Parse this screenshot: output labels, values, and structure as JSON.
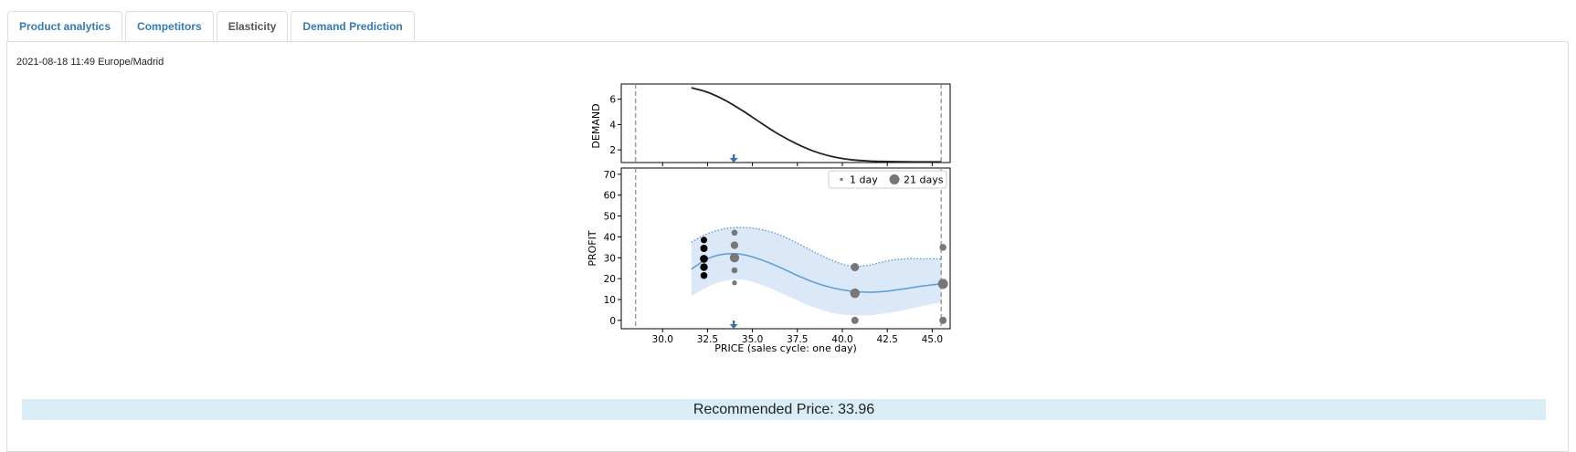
{
  "tabs": [
    {
      "label": "Product analytics",
      "active": false
    },
    {
      "label": "Competitors",
      "active": false
    },
    {
      "label": "Elasticity",
      "active": true
    },
    {
      "label": "Demand Prediction",
      "active": false
    }
  ],
  "timestamp": "2021-08-18 11:49 Europe/Madrid",
  "recommendation": "Recommended Price: 33.96",
  "chart_data": [
    {
      "type": "line",
      "ylabel": "DEMAND",
      "xlim": [
        27.7,
        46.0
      ],
      "ylim": [
        1.0,
        7.2
      ],
      "yticks": [
        2,
        4,
        6
      ],
      "curve": {
        "x": [
          31.6,
          32.5,
          33.5,
          34.5,
          35.5,
          36.5,
          37.5,
          38.5,
          39.5,
          40.5,
          41.5,
          42.5,
          43.5,
          44.5,
          45.5
        ],
        "y": [
          6.9,
          6.55,
          5.9,
          5.05,
          4.1,
          3.2,
          2.45,
          1.85,
          1.45,
          1.22,
          1.12,
          1.08,
          1.06,
          1.05,
          1.05
        ]
      },
      "vlines": [
        28.5,
        45.5
      ],
      "marker_x": 33.96,
      "colors": {
        "curve": "#222222",
        "vline": "#888888",
        "marker": "#3d6fb0"
      }
    },
    {
      "type": "scatter",
      "ylabel": "PROFIT",
      "xlabel": "PRICE (sales cycle: one day)",
      "xlim": [
        27.7,
        46.0
      ],
      "ylim": [
        -4,
        73
      ],
      "xticks": [
        30.0,
        32.5,
        35.0,
        37.5,
        40.0,
        42.5,
        45.0
      ],
      "xtick_labels": [
        "30.0",
        "32.5",
        "35.0",
        "37.5",
        "40.0",
        "42.5",
        "45.0"
      ],
      "yticks": [
        0,
        10,
        20,
        30,
        40,
        50,
        60,
        70
      ],
      "legend": [
        {
          "label": "1 day"
        },
        {
          "label": "21 days"
        }
      ],
      "legend_position": "top-right",
      "mean": {
        "x": [
          31.6,
          32.5,
          33.5,
          34.5,
          35.5,
          36.5,
          37.5,
          38.5,
          39.5,
          40.5,
          41.5,
          42.5,
          43.5,
          44.5,
          45.5
        ],
        "y": [
          24.5,
          29.5,
          31.8,
          31.5,
          29.0,
          25.5,
          21.5,
          18.0,
          15.5,
          14.0,
          13.5,
          14.0,
          15.2,
          16.5,
          17.5
        ]
      },
      "upper": {
        "x": [
          31.6,
          32.5,
          33.5,
          34.5,
          35.5,
          36.5,
          37.5,
          38.5,
          39.5,
          40.5,
          41.5,
          42.5,
          43.5,
          44.5,
          45.5
        ],
        "y": [
          37.5,
          41.5,
          44.0,
          44.5,
          43.5,
          41.0,
          37.0,
          32.5,
          28.5,
          26.0,
          26.5,
          28.5,
          29.5,
          29.5,
          29.5
        ]
      },
      "lower": {
        "x": [
          31.6,
          32.5,
          33.5,
          34.5,
          35.5,
          36.5,
          37.5,
          38.5,
          39.5,
          40.5,
          41.5,
          42.5,
          43.5,
          44.5,
          45.5
        ],
        "y": [
          11.5,
          16.0,
          19.0,
          19.5,
          17.0,
          13.5,
          9.5,
          6.0,
          3.5,
          2.5,
          2.5,
          3.5,
          5.0,
          7.0,
          8.5
        ]
      },
      "points": [
        {
          "x": 32.3,
          "y": 38.5,
          "weight": 5,
          "color": "#000000"
        },
        {
          "x": 32.3,
          "y": 34.5,
          "weight": 7,
          "color": "#000000"
        },
        {
          "x": 32.3,
          "y": 29.5,
          "weight": 9,
          "color": "#000000"
        },
        {
          "x": 32.3,
          "y": 25.5,
          "weight": 8,
          "color": "#000000"
        },
        {
          "x": 32.3,
          "y": 21.5,
          "weight": 6,
          "color": "#000000"
        },
        {
          "x": 34.0,
          "y": 42.0,
          "weight": 4,
          "color": "#777777"
        },
        {
          "x": 34.0,
          "y": 36.0,
          "weight": 8,
          "color": "#777777"
        },
        {
          "x": 34.0,
          "y": 30.0,
          "weight": 14,
          "color": "#777777"
        },
        {
          "x": 34.0,
          "y": 24.0,
          "weight": 4,
          "color": "#777777"
        },
        {
          "x": 34.0,
          "y": 18.0,
          "weight": 2,
          "color": "#777777"
        },
        {
          "x": 40.7,
          "y": 25.5,
          "weight": 10,
          "color": "#777777"
        },
        {
          "x": 40.7,
          "y": 13.0,
          "weight": 15,
          "color": "#777777"
        },
        {
          "x": 40.7,
          "y": 0.0,
          "weight": 7,
          "color": "#777777"
        },
        {
          "x": 45.6,
          "y": 35.0,
          "weight": 6,
          "color": "#777777"
        },
        {
          "x": 45.6,
          "y": 17.5,
          "weight": 17,
          "color": "#777777"
        },
        {
          "x": 45.6,
          "y": 0.0,
          "weight": 7,
          "color": "#777777"
        }
      ],
      "vlines": [
        28.5,
        45.5
      ],
      "marker_x": 33.96,
      "colors": {
        "mean": "#5b9bd5",
        "band": "#dbe8f8",
        "upper": "#5b9bd5",
        "vline": "#888888",
        "marker": "#3d6fb0"
      }
    }
  ]
}
